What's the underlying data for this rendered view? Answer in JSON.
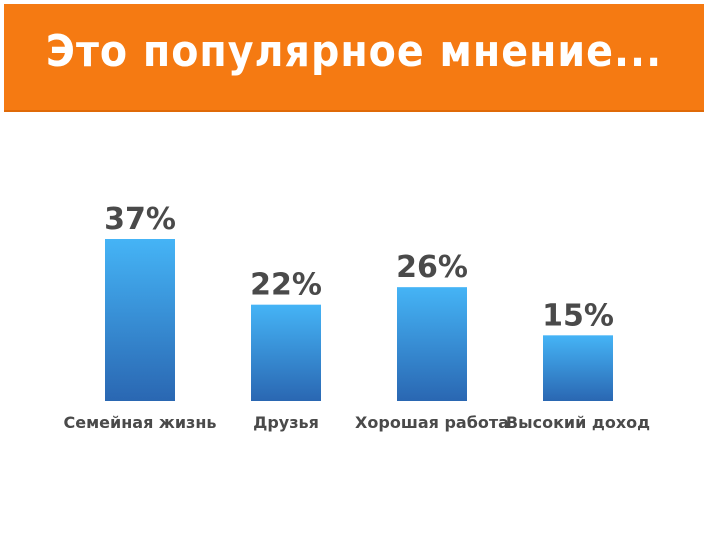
{
  "header": {
    "title": "Это популярное мнение..."
  },
  "colors": {
    "banner": "#f57a12",
    "bar_top": "#45b4f6",
    "bar_bottom": "#2a67b2",
    "text": "#4a4a4a"
  },
  "chart_data": {
    "type": "bar",
    "title": "",
    "xlabel": "",
    "ylabel": "",
    "categories": [
      "Семейная жизнь",
      "Друзья",
      "Хорошая работа",
      "Высокий доход"
    ],
    "values": [
      37,
      22,
      26,
      15
    ],
    "value_labels": [
      "37%",
      "22%",
      "26%",
      "15%"
    ],
    "ylim": [
      0,
      37
    ],
    "grid": false,
    "legend": "none"
  }
}
